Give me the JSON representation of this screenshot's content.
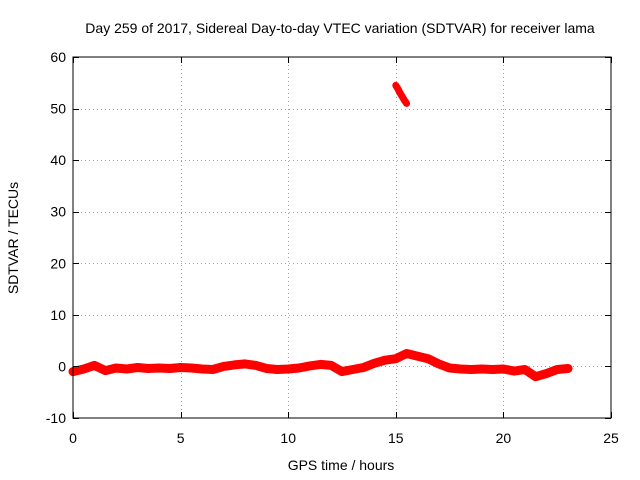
{
  "chart_data": {
    "type": "scatter",
    "title": "Day 259 of 2017, Sidereal Day-to-day VTEC variation (SDTVAR) for receiver lama",
    "xlabel": "GPS time / hours",
    "ylabel": "SDTVAR / TECUs",
    "xlim": [
      0,
      25
    ],
    "ylim": [
      -10,
      60
    ],
    "xticks": [
      0,
      5,
      10,
      15,
      20,
      25
    ],
    "yticks": [
      -10,
      0,
      10,
      20,
      30,
      40,
      50,
      60
    ],
    "grid": true,
    "legend": "none",
    "series": [
      {
        "name": "SDTVAR",
        "color": "#ff0000",
        "x": [
          0.0,
          0.5,
          1.0,
          1.5,
          2.0,
          2.5,
          3.0,
          3.5,
          4.0,
          4.5,
          5.0,
          5.5,
          6.0,
          6.5,
          7.0,
          7.5,
          8.0,
          8.5,
          9.0,
          9.5,
          10.0,
          10.5,
          11.0,
          11.5,
          12.0,
          12.5,
          13.0,
          13.5,
          14.0,
          14.5,
          15.0,
          15.5,
          16.0,
          16.5,
          17.0,
          17.5,
          18.0,
          18.5,
          19.0,
          19.5,
          20.0,
          20.5,
          21.0,
          21.5,
          22.0,
          22.5,
          23.0
        ],
        "values": [
          -1.0,
          -0.5,
          0.2,
          -0.8,
          -0.3,
          -0.5,
          -0.2,
          -0.4,
          -0.3,
          -0.4,
          -0.2,
          -0.3,
          -0.5,
          -0.6,
          0.0,
          0.3,
          0.5,
          0.2,
          -0.4,
          -0.6,
          -0.5,
          -0.3,
          0.1,
          0.4,
          0.2,
          -1.0,
          -0.6,
          -0.2,
          0.6,
          1.2,
          1.5,
          2.5,
          2.0,
          1.5,
          0.5,
          -0.3,
          -0.5,
          -0.6,
          -0.5,
          -0.6,
          -0.5,
          -0.9,
          -0.6,
          -2.0,
          -1.4,
          -0.6,
          -0.4
        ]
      },
      {
        "name": "SDTVAR-high",
        "color": "#ff0000",
        "x": [
          15.0,
          15.1,
          15.2,
          15.3,
          15.4,
          15.5
        ],
        "values": [
          54.5,
          53.8,
          53.0,
          52.3,
          51.6,
          51.0
        ]
      }
    ]
  }
}
